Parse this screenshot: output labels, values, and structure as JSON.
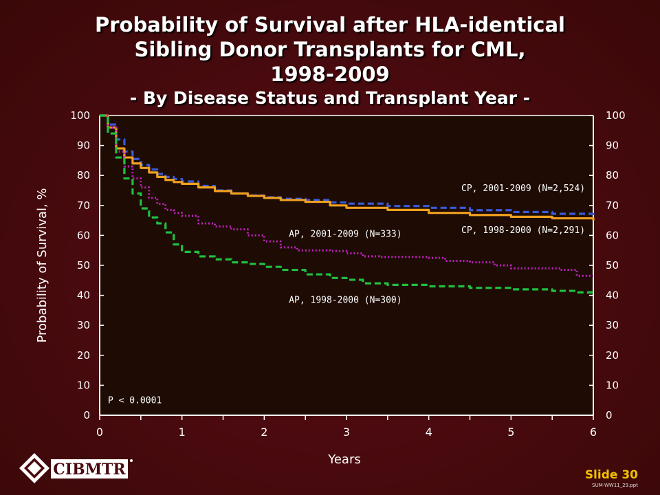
{
  "title": {
    "line1": "Probability of Survival after HLA-identical",
    "line2": "Sibling Donor Transplants for CML,",
    "line3": "1998-2009",
    "subtitle": "- By Disease Status and Transplant Year -"
  },
  "footer": {
    "logo_text": "CIBMTR",
    "slide_label": "Slide 30",
    "file_ref": "SUM-WW11_29.ppt"
  },
  "colors": {
    "plot_bg": "#1e0c04",
    "axis": "#ffffff",
    "cp_2001_2009": "#3a5ad8",
    "cp_1998_2000": "#f0a020",
    "ap_2001_2009": "#c020c0",
    "ap_1998_2000": "#20c040"
  },
  "chart_data": {
    "type": "line",
    "title": "Probability of Survival after HLA-identical Sibling Donor Transplants for CML, 1998-2009",
    "subtitle": "- By Disease Status and Transplant Year -",
    "xlabel": "Years",
    "ylabel": "Probability of Survival, %",
    "xlim": [
      0,
      6
    ],
    "ylim": [
      0,
      100
    ],
    "xticks": [
      "0",
      "1",
      "2",
      "3",
      "4",
      "5",
      "6"
    ],
    "yticks": [
      "0",
      "10",
      "20",
      "30",
      "40",
      "50",
      "60",
      "70",
      "80",
      "90",
      "100"
    ],
    "grid": false,
    "annotation": "P < 0.0001",
    "series": [
      {
        "name": "CP, 2001-2009 (N=2,524)",
        "color": "#3a5ad8",
        "style": "dashed",
        "x": [
          0,
          0.1,
          0.2,
          0.3,
          0.4,
          0.5,
          0.6,
          0.7,
          0.8,
          0.9,
          1.0,
          1.2,
          1.4,
          1.6,
          1.8,
          2.0,
          2.2,
          2.5,
          2.8,
          3.0,
          3.5,
          4.0,
          4.5,
          5.0,
          5.5,
          6.0
        ],
        "y": [
          100,
          97,
          92,
          88,
          85.5,
          83.5,
          82,
          80.5,
          79.5,
          78.8,
          78,
          76.5,
          75,
          74,
          73.3,
          72.7,
          72.2,
          71.8,
          71,
          70.6,
          69.8,
          69.2,
          68.4,
          67.8,
          67.2,
          66.3
        ]
      },
      {
        "name": "CP, 1998-2000 (N=2,291)",
        "color": "#f0a020",
        "style": "solid",
        "x": [
          0,
          0.1,
          0.2,
          0.3,
          0.4,
          0.5,
          0.6,
          0.7,
          0.8,
          0.9,
          1.0,
          1.2,
          1.4,
          1.6,
          1.8,
          2.0,
          2.2,
          2.5,
          2.8,
          3.0,
          3.5,
          4.0,
          4.5,
          5.0,
          5.5,
          6.0
        ],
        "y": [
          100,
          96,
          89,
          86,
          84,
          82.5,
          81,
          79.5,
          78.5,
          77.8,
          77.2,
          76,
          74.8,
          74,
          73.2,
          72.5,
          71.8,
          71.2,
          70,
          69.2,
          68.5,
          67.5,
          66.8,
          66.2,
          65.7,
          65
        ]
      },
      {
        "name": "AP, 2001-2009 (N=333)",
        "color": "#c020c0",
        "style": "dotted",
        "x": [
          0,
          0.1,
          0.2,
          0.3,
          0.4,
          0.5,
          0.6,
          0.7,
          0.8,
          0.9,
          1.0,
          1.2,
          1.4,
          1.6,
          1.8,
          2.0,
          2.2,
          2.4,
          2.6,
          2.8,
          3.0,
          3.2,
          3.4,
          3.6,
          3.8,
          4.0,
          4.2,
          4.5,
          4.8,
          5.0,
          5.3,
          5.6,
          5.8,
          6.0
        ],
        "y": [
          100,
          96,
          88,
          83,
          79,
          76,
          72.5,
          70.5,
          68.5,
          67.5,
          66.5,
          64,
          63,
          62,
          60,
          58,
          56,
          55,
          55,
          54.8,
          54,
          53,
          52.8,
          52.8,
          52.8,
          52.5,
          51.5,
          51,
          50,
          49,
          49,
          48.5,
          46.5,
          46.5
        ]
      },
      {
        "name": "AP, 1998-2000 (N=300)",
        "color": "#20c040",
        "style": "dashed",
        "x": [
          0,
          0.1,
          0.2,
          0.3,
          0.4,
          0.5,
          0.6,
          0.7,
          0.8,
          0.9,
          1.0,
          1.2,
          1.4,
          1.6,
          1.8,
          2.0,
          2.2,
          2.5,
          2.8,
          3.0,
          3.2,
          3.5,
          4.0,
          4.5,
          5.0,
          5.5,
          5.8,
          6.0
        ],
        "y": [
          100,
          94,
          86,
          79,
          74,
          69,
          66,
          64,
          61,
          57,
          54.5,
          53,
          52,
          51,
          50.5,
          49.5,
          48.5,
          47,
          45.8,
          45.2,
          44,
          43.5,
          43,
          42.5,
          42,
          41.5,
          41,
          40
        ]
      }
    ],
    "series_labels": [
      {
        "text": "CP, 2001-2009 (N=2,524)",
        "x": 5.9,
        "y": 74.8,
        "anchor": "end"
      },
      {
        "text": "CP, 1998-2000 (N=2,291)",
        "x": 5.9,
        "y": 60.8,
        "anchor": "end"
      },
      {
        "text": "AP, 2001-2009 (N=333)",
        "x": 2.3,
        "y": 59.5,
        "anchor": "start"
      },
      {
        "text": "AP, 1998-2000 (N=300)",
        "x": 2.3,
        "y": 37.5,
        "anchor": "start"
      }
    ]
  }
}
